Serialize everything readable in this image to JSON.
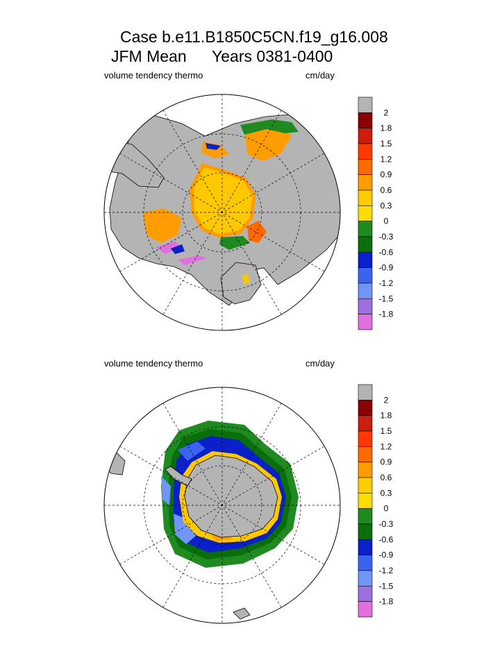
{
  "header": {
    "case_line": "Case b.e11.B1850C5CN.f19_g16.008",
    "season_line": "JFM Mean",
    "years_line": "Years 0381-0400"
  },
  "panels": [
    {
      "id": "north",
      "variable_label": "volume tendency thermo",
      "units_label": "cm/day"
    },
    {
      "id": "south",
      "variable_label": "volume tendency thermo",
      "units_label": "cm/day"
    }
  ],
  "colorbar": {
    "labels": [
      "2",
      "1.8",
      "1.5",
      "1.2",
      "0.9",
      "0.6",
      "0.3",
      "0",
      "-0.3",
      "-0.6",
      "-0.9",
      "-1.2",
      "-1.5",
      "-1.8"
    ],
    "colors": [
      "#b4b4b4",
      "#8b0000",
      "#cc1e0c",
      "#ff3a00",
      "#ff6a00",
      "#ff9d00",
      "#ffcc00",
      "#1f8a1f",
      "#0a6e0a",
      "#0a20c8",
      "#3a64f0",
      "#6f96f4",
      "#9e6fe0",
      "#e06fe0"
    ],
    "bands": [
      "#b4b4b4",
      "#8b0000",
      "#cc1e0c",
      "#ff3a00",
      "#ff6a00",
      "#ff9d00",
      "#ffcc00",
      "#ffdd00",
      "#1f8a1f",
      "#0a6e0a",
      "#0a20c8",
      "#3a64f0",
      "#6f96f4",
      "#9e6fe0",
      "#e06fe0"
    ]
  },
  "map_colors": {
    "land": "#b4b4b4",
    "ocean": "#ffffff",
    "ice_growth": "#ffc800",
    "ice_growth_mid": "#ff9d00",
    "ice_growth_high": "#ff6a00",
    "ice_loss_green": "#1f8a1f",
    "ice_loss_dark_green": "#0a6e0a",
    "ice_loss_blue": "#0a20c8",
    "ice_loss_light_blue": "#3a64f0",
    "ice_loss_violet": "#e06fe0"
  }
}
